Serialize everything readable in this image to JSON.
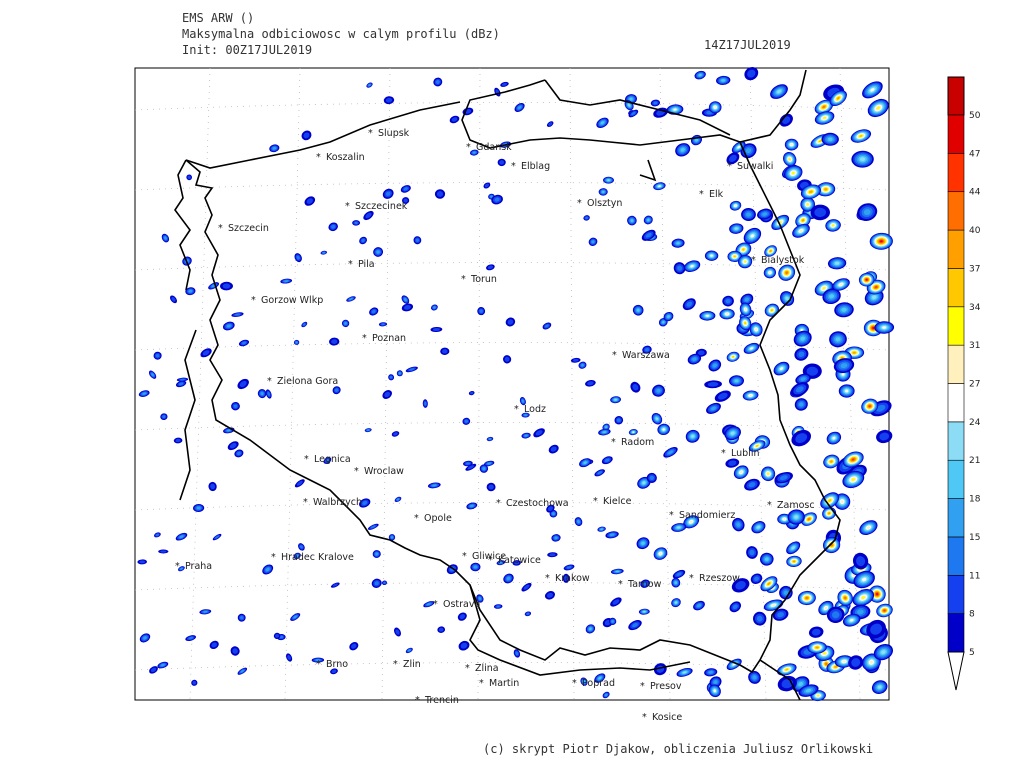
{
  "header": {
    "model": "EMS ARW ()",
    "field": "Maksymalna odbiciowosc w calym profilu (dBz)",
    "init": "Init: 00Z17JUL2019",
    "valid": "14Z17JUL2019"
  },
  "cities": [
    "Slupsk",
    "Koszalin",
    "Gdansk",
    "Elblag",
    "Szczecinek",
    "Olsztyn",
    "Suwalki",
    "Elk",
    "Szczecin",
    "Pila",
    "Torun",
    "Bialystok",
    "Gorzow Wlkp",
    "Poznan",
    "Warszawa",
    "Zielona Gora",
    "Lodz",
    "Radom",
    "Lublin",
    "Legnica",
    "Wroclaw",
    "Walbrzych",
    "Czestochowa",
    "Kielce",
    "Opole",
    "Sandomierz",
    "Zamosc",
    "Praha",
    "Hradec Kralove",
    "Gliwice",
    "Katowice",
    "Krakow",
    "Tarnow",
    "Rzeszow",
    "Ostrava",
    "Brno",
    "Zlin",
    "Zlina",
    "Martin",
    "Poprad",
    "Presov",
    "Trencin",
    "Kosice"
  ],
  "colorbar": {
    "levels": [
      5,
      8,
      11,
      15,
      18,
      21,
      24,
      27,
      31,
      34,
      37,
      40,
      44,
      47,
      50
    ],
    "colors": [
      "#0000c8",
      "#1440f0",
      "#1e78f0",
      "#32a0f0",
      "#50c8f5",
      "#8cdcf5",
      "#ffffff",
      "#fff0be",
      "#ffff00",
      "#ffc800",
      "#ffa000",
      "#ff6e00",
      "#ff3200",
      "#e10000"
    ],
    "over_color": "#c80000",
    "top_color": "#80d040",
    "under_color": "#ffffff"
  },
  "footer": "(c) skrypt Piotr Djakow, obliczenia Juliusz Orlikowski"
}
